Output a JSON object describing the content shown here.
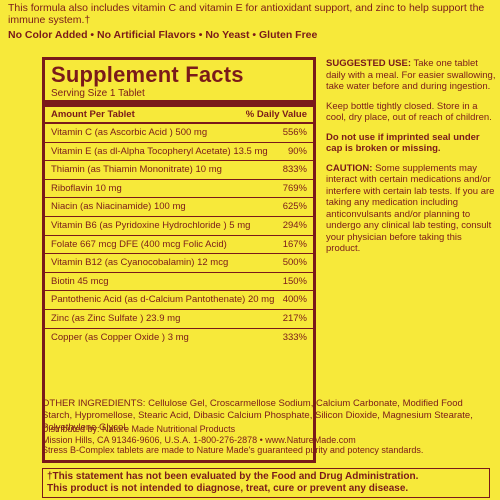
{
  "intro": {
    "line1": "This formula also includes vitamin C and vitamin E for antioxidant support, and zinc to help support the immune system.†",
    "claims": "No Color Added • No Artificial Flavors • No Yeast • Gluten Free"
  },
  "supplement_facts": {
    "title": "Supplement Facts",
    "serving": "Serving Size 1 Tablet",
    "col_amount": "Amount Per Tablet",
    "col_dv": "% Daily Value",
    "rows": [
      {
        "name": "Vitamin C (as Ascorbic Acid ) 500 mg",
        "dv": "556%"
      },
      {
        "name": "Vitamin E (as dl-Alpha Tocopheryl Acetate) 13.5 mg",
        "dv": "90%"
      },
      {
        "name": "Thiamin (as Thiamin Mononitrate) 10 mg",
        "dv": "833%"
      },
      {
        "name": "Riboflavin 10 mg",
        "dv": "769%"
      },
      {
        "name": "Niacin (as Niacinamide) 100 mg",
        "dv": "625%"
      },
      {
        "name": "Vitamin B6 (as Pyridoxine Hydrochloride ) 5 mg",
        "dv": "294%"
      },
      {
        "name": "Folate 667 mcg DFE (400 mcg Folic Acid)",
        "dv": "167%"
      },
      {
        "name": "Vitamin B12 (as Cyanocobalamin) 12 mcg",
        "dv": "500%"
      },
      {
        "name": "Biotin 45 mcg",
        "dv": "150%"
      },
      {
        "name": "Pantothenic Acid (as d-Calcium Pantothenate) 20 mg",
        "dv": "400%"
      },
      {
        "name": "Zinc (as Zinc Sulfate ) 23.9 mg",
        "dv": "217%"
      },
      {
        "name": "Copper (as Copper Oxide ) 3 mg",
        "dv": "333%"
      }
    ]
  },
  "right_column": {
    "use_label": "SUGGESTED USE:",
    "use_text": "Take one tablet daily with a meal. For easier swallowing, take water before and during ingestion.",
    "storage": "Keep bottle tightly closed. Store in a cool, dry place, out of reach of children.",
    "seal": "Do not use if imprinted seal under cap is broken or missing.",
    "caution_label": "CAUTION:",
    "caution_text": "Some supplements may interact with certain medications and/or interfere with certain lab tests. If you are taking any medication including anticonvulsants and/or planning to undergo any clinical lab testing, consult your physician before taking this product."
  },
  "other_ingredients": "OTHER INGREDIENTS: Cellulose Gel, Croscarmellose Sodium, Calcium Carbonate, Modified Food Starch, Hypromellose, Stearic Acid, Dibasic Calcium Phosphate, Silicon Dioxide, Magnesium Stearate, Polyethylene Glycol.",
  "distributor": {
    "line1": "Distributed by: Nature Made Nutritional Products",
    "line2": "Mission Hills, CA 91346-9606, U.S.A. 1-800-276-2878 • www.NatureMade.com",
    "line3": "Stress B-Complex tablets are made to Nature Made's guaranteed purity and potency standards."
  },
  "statement": {
    "line1": "†This statement has not been evaluated by the Food and Drug Administration.",
    "line2": "This product is not intended to diagnose, treat, cure or prevent any disease."
  }
}
